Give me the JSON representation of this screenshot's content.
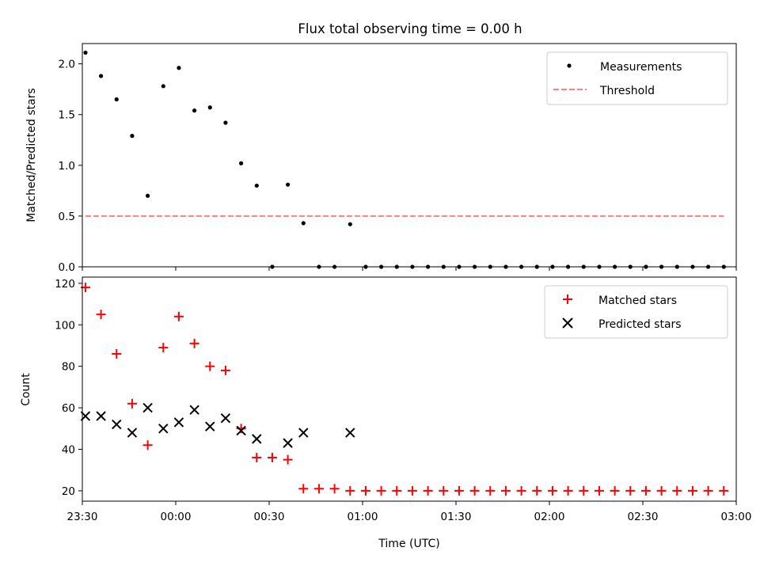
{
  "chart_data": [
    {
      "type": "scatter",
      "title": "Flux total observing time = 0.00 h",
      "xlabel": "",
      "ylabel": "Matched/Predicted stars",
      "ylim": [
        0,
        2.2
      ],
      "yticks": [
        "0.0",
        "0.5",
        "1.0",
        "1.5",
        "2.0"
      ],
      "legend_position": "top-right",
      "series": [
        {
          "name": "Measurements",
          "kind": "scatter",
          "color": "#000000",
          "x": [
            "23:31",
            "23:36",
            "23:41",
            "23:46",
            "23:51",
            "23:56",
            "00:01",
            "00:06",
            "00:11",
            "00:16",
            "00:21",
            "00:26",
            "00:31",
            "00:36",
            "00:41",
            "00:46",
            "00:51",
            "00:56",
            "01:01",
            "01:06",
            "01:11",
            "01:16",
            "01:21",
            "01:26",
            "01:31",
            "01:36",
            "01:41",
            "01:46",
            "01:51",
            "01:56",
            "02:01",
            "02:06",
            "02:11",
            "02:16",
            "02:21",
            "02:26",
            "02:31",
            "02:36",
            "02:41",
            "02:46",
            "02:51",
            "02:56"
          ],
          "y": [
            2.11,
            1.88,
            1.65,
            1.29,
            0.7,
            1.78,
            1.96,
            1.54,
            1.57,
            1.42,
            1.02,
            0.8,
            0.0,
            0.81,
            0.43,
            0.0,
            0.0,
            0.42,
            0.0,
            0.0,
            0.0,
            0.0,
            0.0,
            0.0,
            0.0,
            0.0,
            0.0,
            0.0,
            0.0,
            0.0,
            0.0,
            0.0,
            0.0,
            0.0,
            0.0,
            0.0,
            0.0,
            0.0,
            0.0,
            0.0,
            0.0,
            0.0
          ]
        },
        {
          "name": "Threshold",
          "kind": "dashed-line",
          "color": "#ff7f7f",
          "x": [
            "23:31",
            "02:56"
          ],
          "y": [
            0.5,
            0.5
          ]
        }
      ]
    },
    {
      "type": "scatter",
      "title": "",
      "xlabel": "Time (UTC)",
      "ylabel": "Count",
      "ylim": [
        15,
        123
      ],
      "yticks": [
        "20",
        "40",
        "60",
        "80",
        "100",
        "120"
      ],
      "xticks": [
        "23:30",
        "00:00",
        "00:30",
        "01:00",
        "01:30",
        "02:00",
        "02:30",
        "03:00"
      ],
      "legend_position": "top-right",
      "series": [
        {
          "name": "Matched stars",
          "marker": "plus",
          "color": "#ff0000",
          "x": [
            "23:31",
            "23:36",
            "23:41",
            "23:46",
            "23:51",
            "23:56",
            "00:01",
            "00:06",
            "00:11",
            "00:16",
            "00:21",
            "00:26",
            "00:31",
            "00:36",
            "00:41",
            "00:46",
            "00:51",
            "00:56",
            "01:01",
            "01:06",
            "01:11",
            "01:16",
            "01:21",
            "01:26",
            "01:31",
            "01:36",
            "01:41",
            "01:46",
            "01:51",
            "01:56",
            "02:01",
            "02:06",
            "02:11",
            "02:16",
            "02:21",
            "02:26",
            "02:31",
            "02:36",
            "02:41",
            "02:46",
            "02:51",
            "02:56"
          ],
          "y": [
            118,
            105,
            86,
            62,
            42,
            89,
            104,
            91,
            80,
            78,
            50,
            36,
            36,
            35,
            21,
            21,
            21,
            20,
            20,
            20,
            20,
            20,
            20,
            20,
            20,
            20,
            20,
            20,
            20,
            20,
            20,
            20,
            20,
            20,
            20,
            20,
            20,
            20,
            20,
            20,
            20,
            20
          ]
        },
        {
          "name": "Predicted stars",
          "marker": "x",
          "color": "#000000",
          "x": [
            "23:31",
            "23:36",
            "23:41",
            "23:46",
            "23:51",
            "23:56",
            "00:01",
            "00:06",
            "00:11",
            "00:16",
            "00:21",
            "00:26",
            "00:36",
            "00:41",
            "00:56"
          ],
          "y": [
            56,
            56,
            52,
            48,
            60,
            50,
            53,
            59,
            51,
            55,
            49,
            45,
            43,
            48,
            48
          ]
        }
      ]
    }
  ]
}
